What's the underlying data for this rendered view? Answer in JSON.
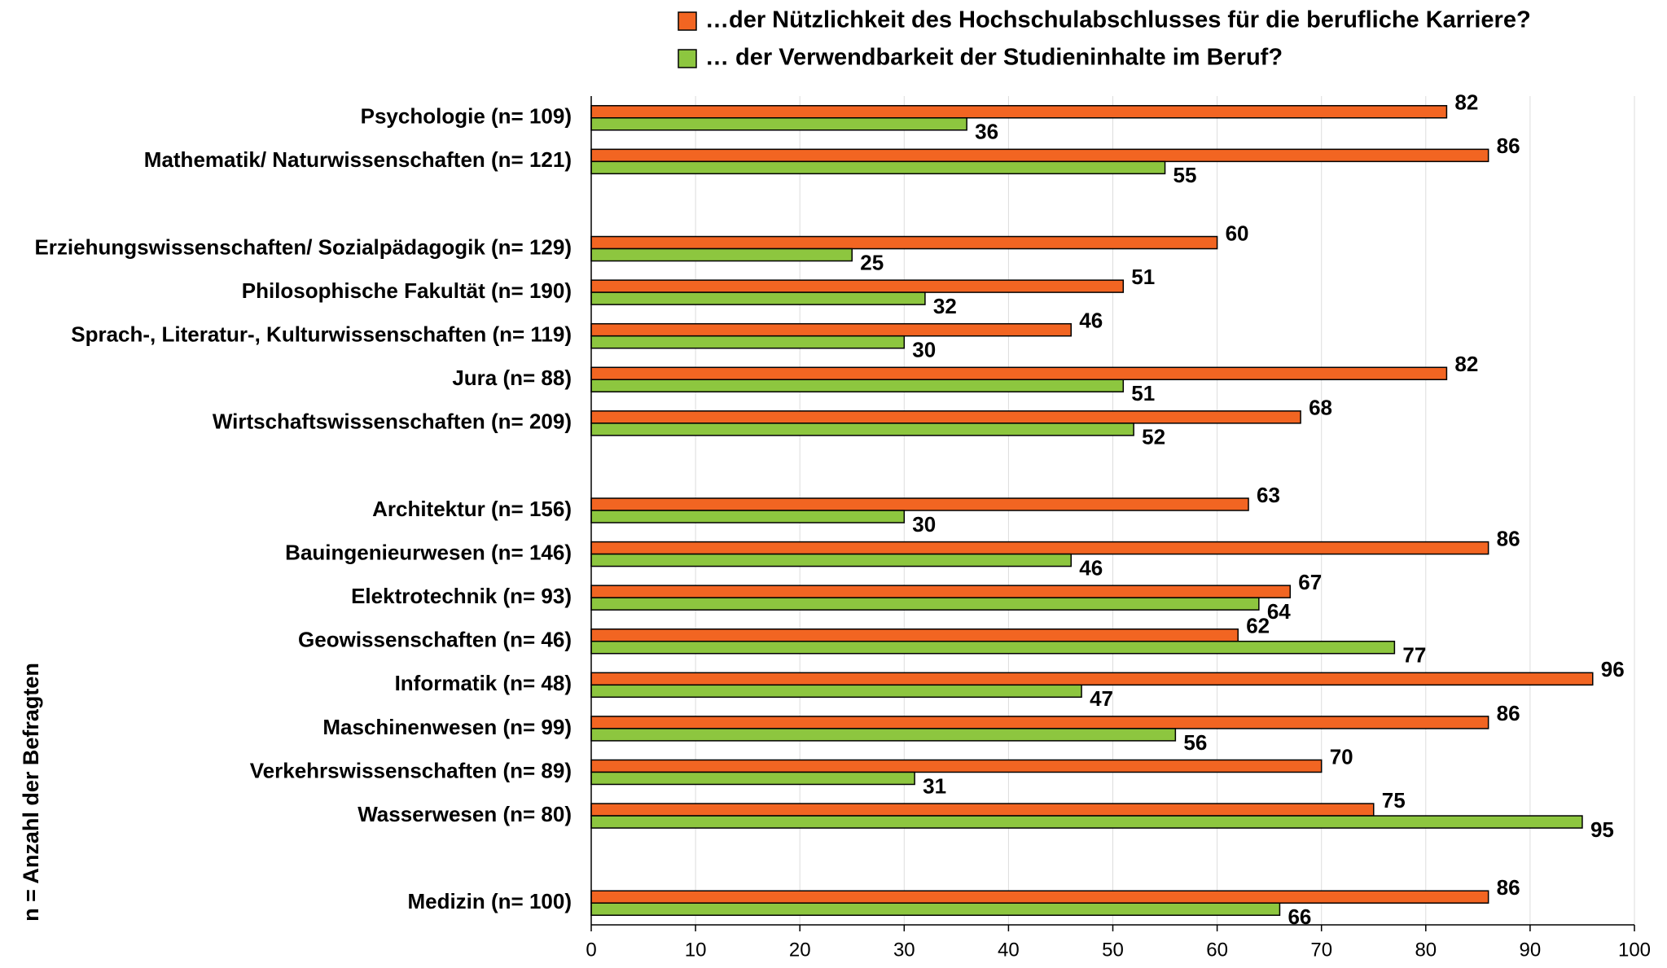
{
  "chart_data": {
    "type": "barh",
    "ylabel": "n = Anzahl der Befragten",
    "categories": [
      "Psychologie (n= 109)",
      "Mathematik/ Naturwissenschaften (n= 121)",
      null,
      "Erziehungswissenschaften/ Sozialpädagogik (n= 129)",
      "Philosophische Fakultät (n= 190)",
      "Sprach-, Literatur-, Kulturwissenschaften (n= 119)",
      "Jura (n= 88)",
      "Wirtschaftswissenschaften (n= 209)",
      null,
      "Architektur (n= 156)",
      "Bauingenieurwesen (n= 146)",
      "Elektrotechnik (n= 93)",
      "Geowissenschaften (n= 46)",
      "Informatik (n= 48)",
      "Maschinenwesen (n= 99)",
      "Verkehrswissenschaften (n= 89)",
      "Wasserwesen (n= 80)",
      null,
      "Medizin (n= 100)"
    ],
    "series": [
      {
        "name": "…der Nützlichkeit des Hochschulabschlusses für die berufliche Karriere?",
        "color": "#f26522",
        "values": [
          82,
          86,
          null,
          60,
          51,
          46,
          82,
          68,
          null,
          63,
          86,
          67,
          62,
          96,
          86,
          70,
          75,
          null,
          86
        ]
      },
      {
        "name": "… der Verwendbarkeit der Studieninhalte im Beruf?",
        "color": "#8dc63f",
        "values": [
          36,
          55,
          null,
          25,
          32,
          30,
          51,
          52,
          null,
          30,
          46,
          64,
          77,
          47,
          56,
          31,
          95,
          null,
          66
        ]
      }
    ],
    "xlim": [
      0,
      100
    ],
    "xticks": [
      0,
      10,
      20,
      30,
      40,
      50,
      60,
      70,
      80,
      90,
      100
    ],
    "grid": true
  }
}
